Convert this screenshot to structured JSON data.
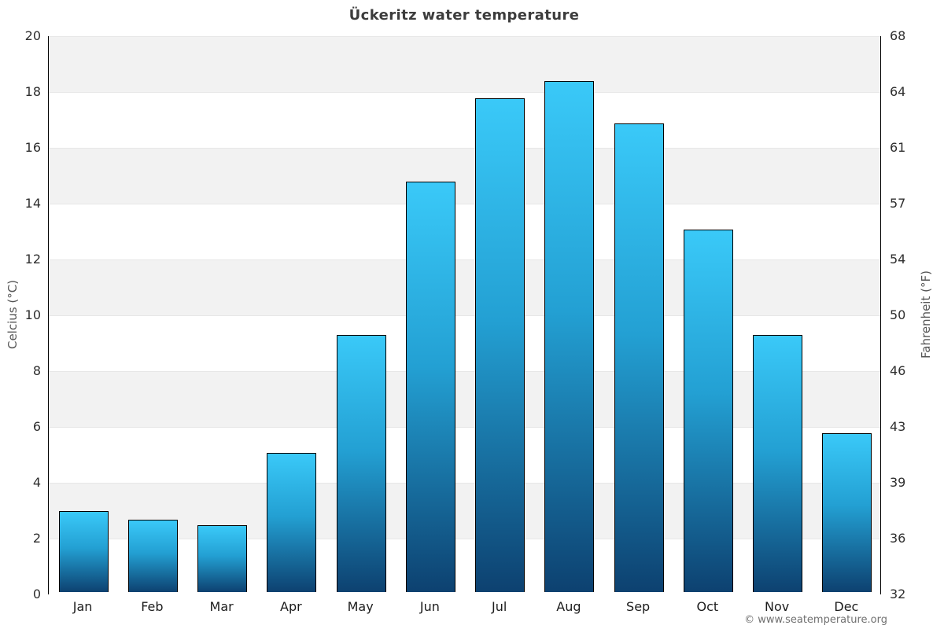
{
  "page": {
    "title": "Ückeritz water temperature",
    "footer": "© www.seatemperature.org"
  },
  "chart_data": {
    "type": "bar",
    "title": "Ückeritz water temperature",
    "categories": [
      "Jan",
      "Feb",
      "Mar",
      "Apr",
      "May",
      "Jun",
      "Jul",
      "Aug",
      "Sep",
      "Oct",
      "Nov",
      "Dec"
    ],
    "series": [
      {
        "name": "Water temperature (°C)",
        "values": [
          2.9,
          2.6,
          2.4,
          5.0,
          9.2,
          14.7,
          17.7,
          18.3,
          16.8,
          13.0,
          9.2,
          5.7
        ]
      }
    ],
    "xlabel": "",
    "ylabel_left": "Celcius (°C)",
    "ylabel_right": "Fahrenheit (°F)",
    "ylim": [
      0,
      20
    ],
    "yticks_celsius": [
      0,
      2,
      4,
      6,
      8,
      10,
      12,
      14,
      16,
      18,
      20
    ],
    "yticks_fahrenheit": [
      "32",
      "36",
      "39",
      "43",
      "46",
      "50",
      "54",
      "57",
      "61",
      "64",
      "68"
    ],
    "grid": "alternating horizontal bands every 2°C",
    "band_color_gray": "#f2f2f2",
    "band_color_white": "#ffffff",
    "legend": "none",
    "bar_border_color": "#000000",
    "bar_gradient_top": "#3ac9f8",
    "bar_gradient_mid": "#23a0d3",
    "bar_gradient_bottom": "#0d4170",
    "axis_color": "#000000"
  }
}
